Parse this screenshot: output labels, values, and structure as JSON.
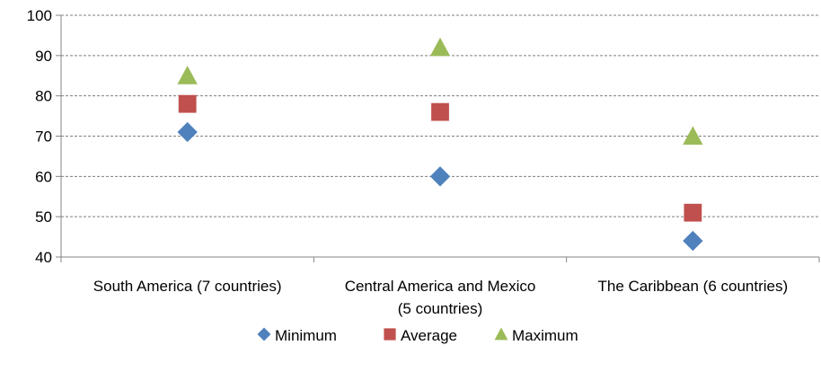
{
  "chart_data": {
    "type": "scatter",
    "categories": [
      [
        "South America (7 countries)"
      ],
      [
        "Central America and Mexico",
        "(5 countries)"
      ],
      [
        "The Caribbean (6 countries)"
      ]
    ],
    "series": [
      {
        "name": "Minimum",
        "values": [
          71,
          60,
          44
        ],
        "color": "#4F81BD",
        "marker": "diamond"
      },
      {
        "name": "Average",
        "values": [
          78,
          76,
          51
        ],
        "color": "#C0504D",
        "marker": "square"
      },
      {
        "name": "Maximum",
        "values": [
          85,
          92,
          70
        ],
        "color": "#9BBB59",
        "marker": "triangle"
      }
    ],
    "ylim": [
      40,
      100
    ],
    "yticks": [
      40,
      50,
      60,
      70,
      80,
      90,
      100
    ],
    "grid": true,
    "legend_position": "bottom",
    "title": "",
    "xlabel": "",
    "ylabel": ""
  }
}
